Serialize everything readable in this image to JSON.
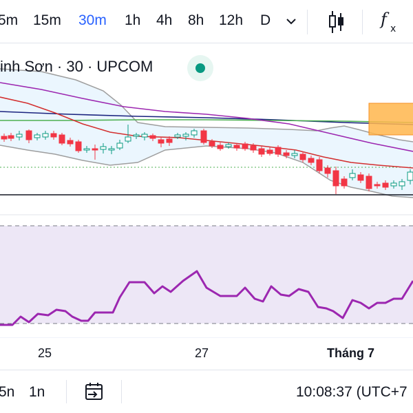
{
  "toolbar": {
    "timeframes": [
      "5m",
      "15m",
      "30m",
      "1h",
      "4h",
      "8h",
      "12h",
      "D"
    ],
    "active_timeframe": "30m",
    "more_icon": "chevron-down-icon",
    "chart_type_icon": "candlestick-icon",
    "indicators_icon": "fx-icon"
  },
  "legend": {
    "title": "inh Sơn · 30 · UPCOM",
    "status_color": "#089981"
  },
  "x_axis": {
    "labels": [
      "25",
      "27",
      "Tháng 7"
    ]
  },
  "bottom_bar": {
    "ranges": [
      "5n",
      "1n"
    ],
    "goto_icon": "calendar-goto-icon",
    "time": "10:08:37 (UTC+7"
  },
  "colors": {
    "up": "#089981",
    "down": "#f23645",
    "bollinger_fill": "#e3f2fd",
    "bollinger_band": "#9e9e9e",
    "ma_red": "#d32f2f",
    "ma_purple": "#9c27b0",
    "ma_navy": "#1a237e",
    "ma_green": "#4caf50",
    "rsi_line": "#9c27b0",
    "rsi_fill": "#ede7f6"
  }
}
